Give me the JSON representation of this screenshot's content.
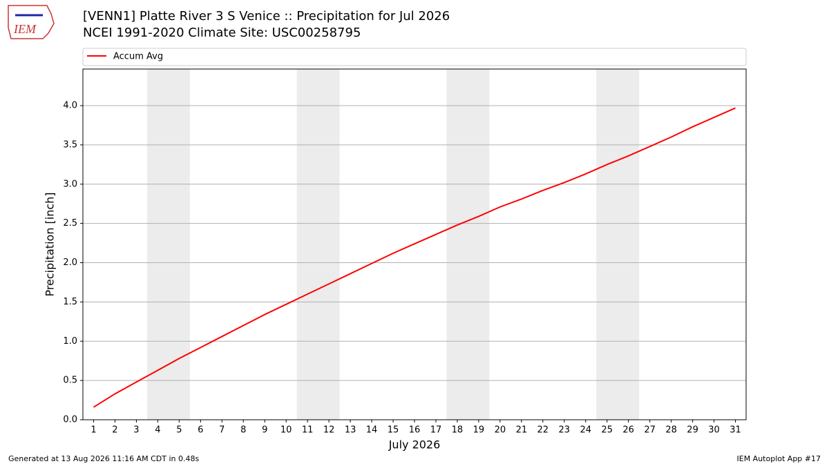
{
  "chart_data": {
    "type": "line",
    "title": "[VENN1] Platte River 3 S Venice :: Precipitation for Jul 2026",
    "subtitle": "NCEI 1991-2020 Climate Site: USC00258795",
    "logo_text": "IEM",
    "x_label": "July 2026",
    "y_label": "Precipitation [inch]",
    "x": [
      1,
      2,
      3,
      4,
      5,
      6,
      7,
      8,
      9,
      10,
      11,
      12,
      13,
      14,
      15,
      16,
      17,
      18,
      19,
      20,
      21,
      22,
      23,
      24,
      25,
      26,
      27,
      28,
      29,
      30,
      31
    ],
    "series": [
      {
        "name": "Accum Avg",
        "color": "#ff0000",
        "values": [
          0.16,
          0.33,
          0.48,
          0.63,
          0.78,
          0.92,
          1.06,
          1.2,
          1.34,
          1.47,
          1.6,
          1.73,
          1.86,
          1.99,
          2.12,
          2.24,
          2.36,
          2.48,
          2.59,
          2.71,
          2.81,
          2.92,
          3.02,
          3.13,
          3.25,
          3.36,
          3.48,
          3.6,
          3.73,
          3.85,
          3.97
        ]
      }
    ],
    "weekend_bands": [
      [
        3.5,
        5.5
      ],
      [
        10.5,
        12.5
      ],
      [
        17.5,
        19.5
      ],
      [
        24.5,
        26.5
      ]
    ],
    "band_color": "#ececec",
    "xlim": [
      0.5,
      31.5
    ],
    "ylim": [
      0,
      4.466
    ],
    "xticks": [
      1,
      2,
      3,
      4,
      5,
      6,
      7,
      8,
      9,
      10,
      11,
      12,
      13,
      14,
      15,
      16,
      17,
      18,
      19,
      20,
      21,
      22,
      23,
      24,
      25,
      26,
      27,
      28,
      29,
      30,
      31
    ],
    "yticks": [
      {
        "value": 0,
        "label": "0.0"
      },
      0.5,
      {
        "value": 1,
        "label": "1.0"
      },
      1.5,
      {
        "value": 2,
        "label": "2.0"
      },
      2.5,
      {
        "value": 3,
        "label": "3.0"
      },
      3.5,
      {
        "value": 4,
        "label": "4.0"
      }
    ],
    "grid": true,
    "legend": "top",
    "footer_left": "Generated at 13 Aug 2026 11:16 AM CDT in 0.48s",
    "footer_right": "IEM Autoplot App #17"
  }
}
